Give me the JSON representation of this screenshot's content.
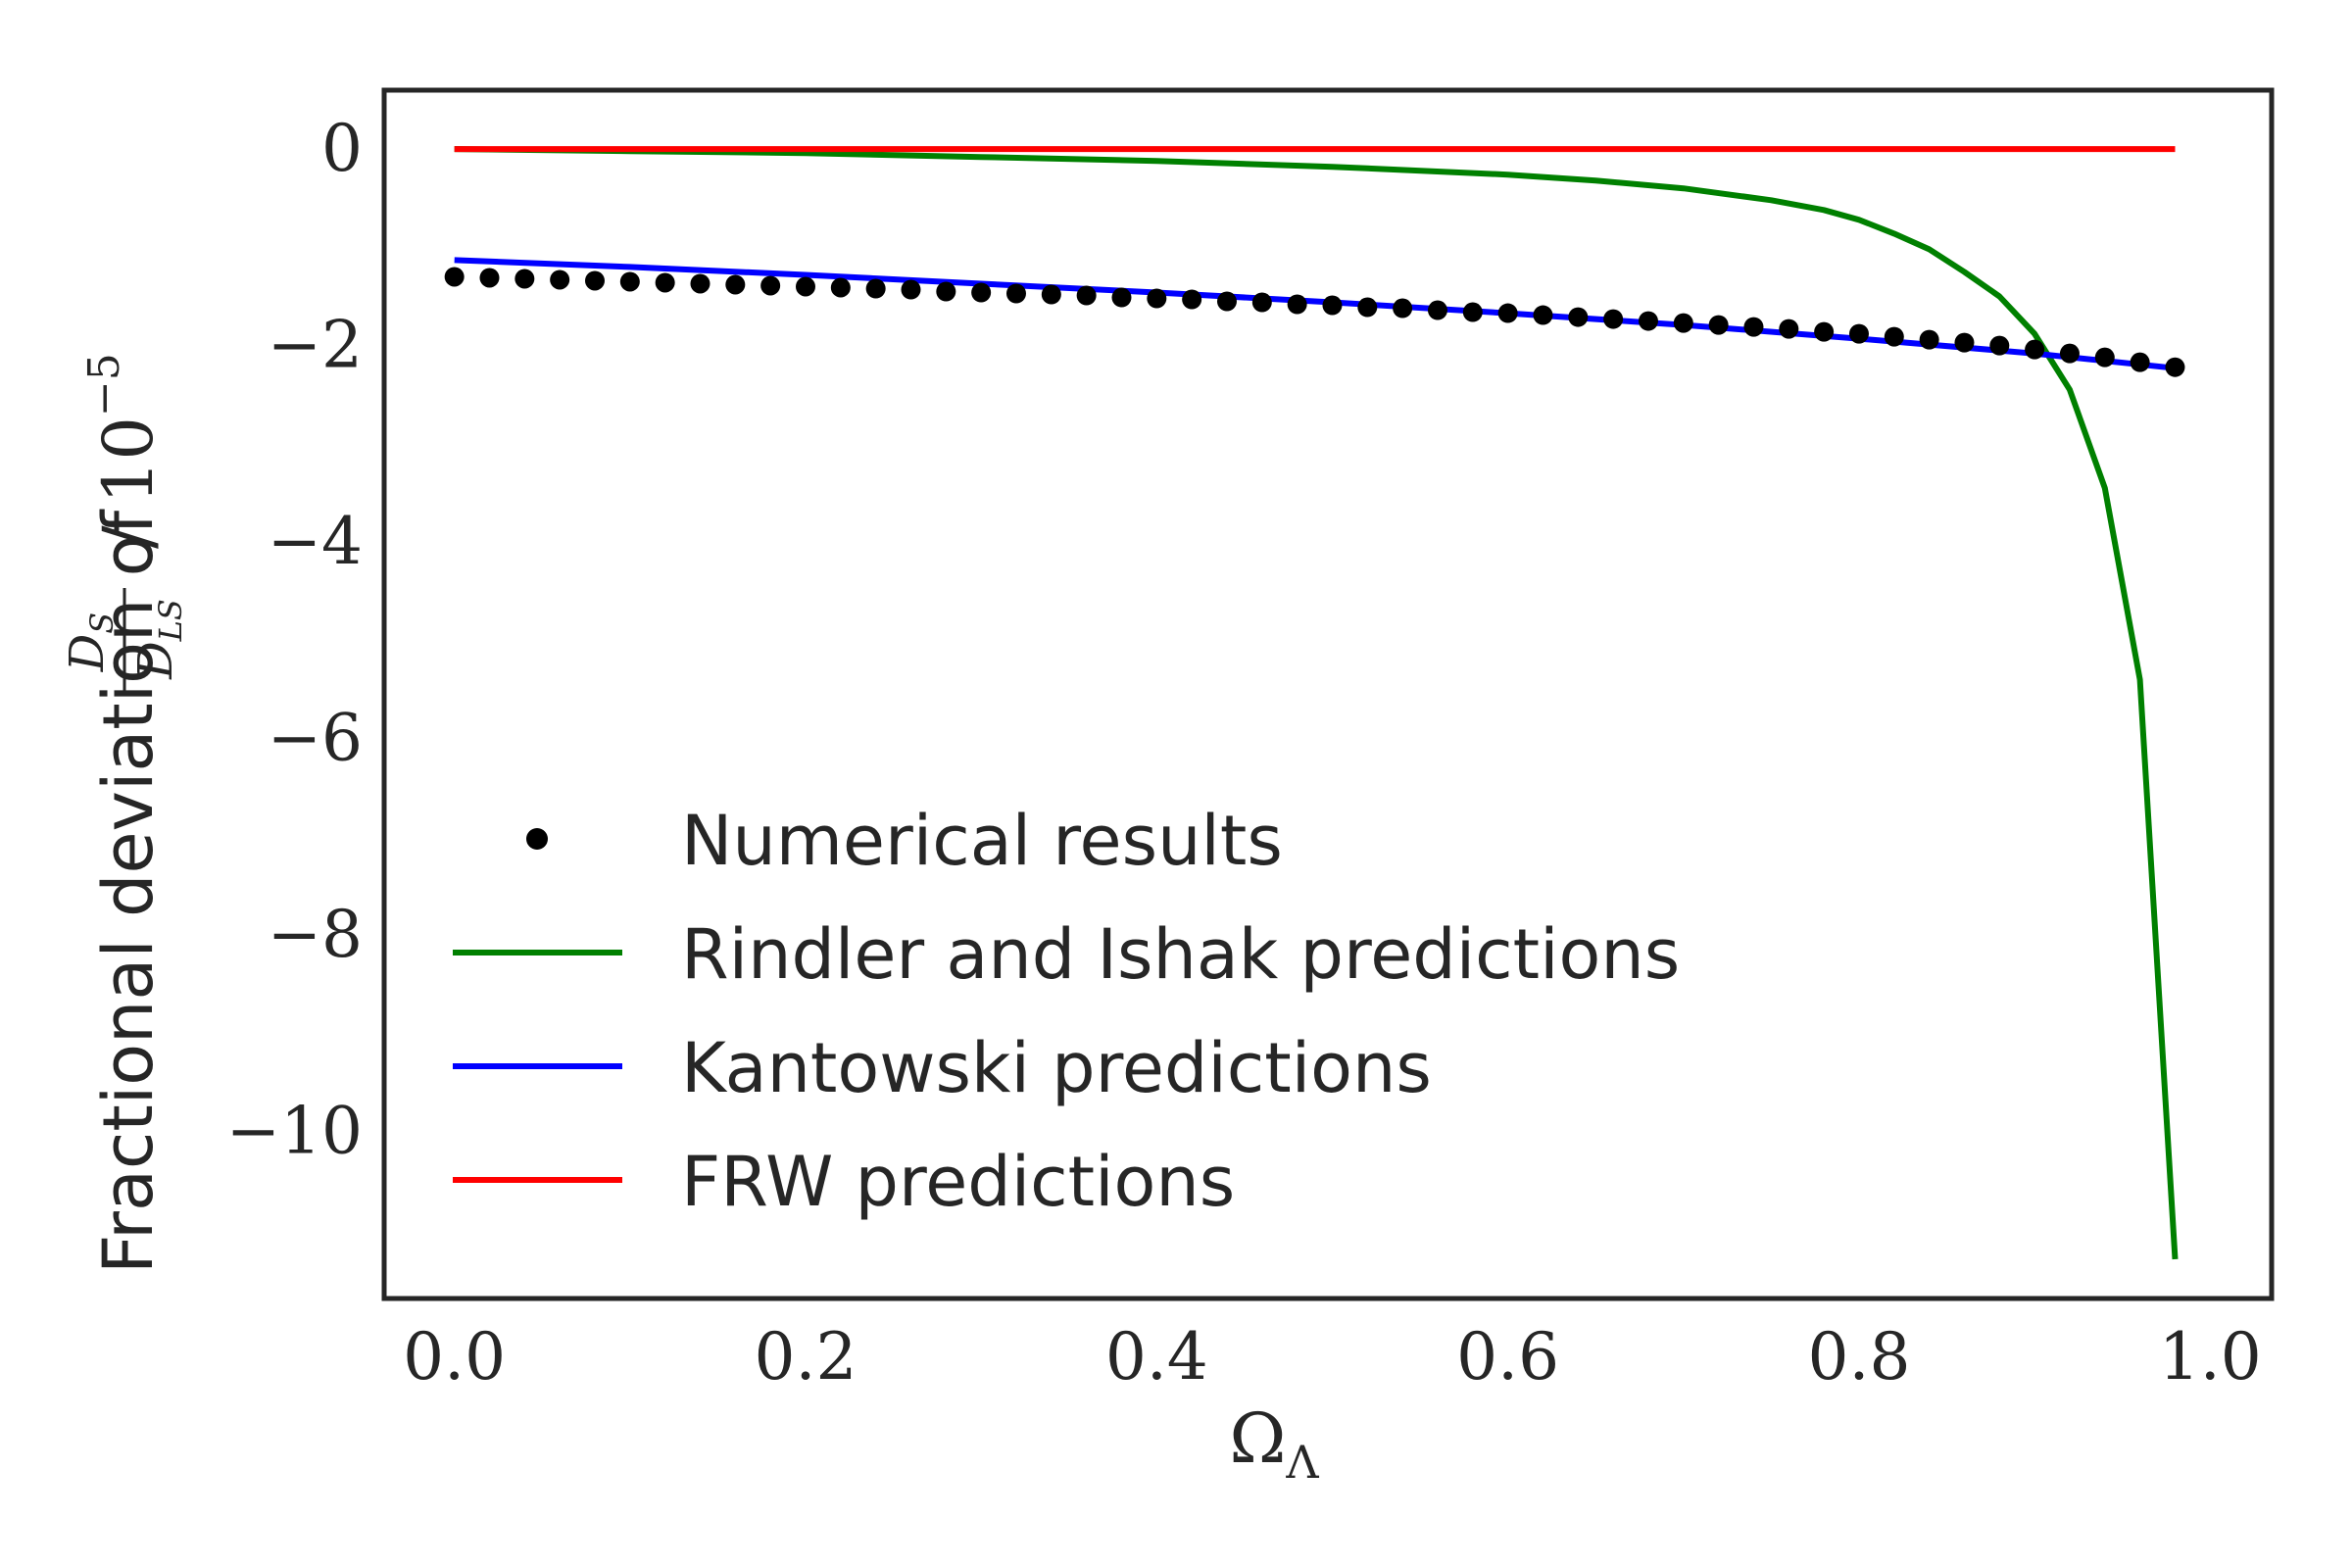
{
  "chart_data": {
    "type": "line",
    "xlabel": "Ω",
    "xlabel_sub": "Λ",
    "ylabel": {
      "prefix": "Fractional deviation of",
      "frac_num": "D",
      "frac_num_sub": "S",
      "frac_den": "D",
      "frac_den_sub": "LS",
      "suffix": "/ 10",
      "suffix_exp": "−5"
    },
    "xlim": [
      -0.04,
      1.035
    ],
    "ylim": [
      -11.7,
      0.6
    ],
    "x_ticks": [
      0.0,
      0.2,
      0.4,
      0.6,
      0.8,
      1.0
    ],
    "x_tick_labels": [
      "0.0",
      "0.2",
      "0.4",
      "0.6",
      "0.8",
      "1.0"
    ],
    "y_ticks": [
      0,
      -2,
      -4,
      -6,
      -8,
      -10
    ],
    "y_tick_labels": [
      "0",
      "−2",
      "−4",
      "−6",
      "−8",
      "−10"
    ],
    "grid": false,
    "legend_position": "lower-left",
    "colors": {
      "numerical": "#000000",
      "rindler": "#008000",
      "kantowski": "#0000ff",
      "frw": "#ff0000",
      "axes": "#262626"
    },
    "series": [
      {
        "name": "Numerical results",
        "style": "dots",
        "x": [
          0.0,
          0.02,
          0.04,
          0.06,
          0.08,
          0.1,
          0.12,
          0.14,
          0.16,
          0.18,
          0.2,
          0.22,
          0.24,
          0.26,
          0.28,
          0.3,
          0.32,
          0.34,
          0.36,
          0.38,
          0.4,
          0.42,
          0.44,
          0.46,
          0.48,
          0.5,
          0.52,
          0.54,
          0.56,
          0.58,
          0.6,
          0.62,
          0.64,
          0.66,
          0.68,
          0.7,
          0.72,
          0.74,
          0.76,
          0.78,
          0.8,
          0.82,
          0.84,
          0.86,
          0.88,
          0.9,
          0.92,
          0.94,
          0.96,
          0.98
        ],
        "y": [
          -1.3,
          -1.31,
          -1.32,
          -1.33,
          -1.34,
          -1.35,
          -1.36,
          -1.37,
          -1.38,
          -1.39,
          -1.4,
          -1.41,
          -1.42,
          -1.43,
          -1.45,
          -1.46,
          -1.47,
          -1.48,
          -1.49,
          -1.51,
          -1.52,
          -1.53,
          -1.55,
          -1.56,
          -1.58,
          -1.59,
          -1.61,
          -1.62,
          -1.64,
          -1.66,
          -1.67,
          -1.69,
          -1.71,
          -1.73,
          -1.75,
          -1.77,
          -1.79,
          -1.81,
          -1.83,
          -1.86,
          -1.88,
          -1.91,
          -1.94,
          -1.97,
          -2.0,
          -2.04,
          -2.08,
          -2.12,
          -2.17,
          -2.22
        ]
      },
      {
        "name": "Rindler and Ishak predictions",
        "style": "line",
        "x": [
          0.0,
          0.1,
          0.2,
          0.3,
          0.4,
          0.5,
          0.6,
          0.65,
          0.7,
          0.75,
          0.78,
          0.8,
          0.82,
          0.84,
          0.86,
          0.88,
          0.9,
          0.92,
          0.94,
          0.96,
          0.98
        ],
        "y": [
          0.0,
          -0.02,
          -0.04,
          -0.08,
          -0.12,
          -0.18,
          -0.26,
          -0.32,
          -0.4,
          -0.52,
          -0.62,
          -0.72,
          -0.86,
          -1.02,
          -1.25,
          -1.5,
          -1.88,
          -2.45,
          -3.45,
          -5.4,
          -11.3
        ]
      },
      {
        "name": "Kantowski predictions",
        "style": "line",
        "x": [
          0.0,
          0.1,
          0.2,
          0.3,
          0.4,
          0.5,
          0.6,
          0.7,
          0.8,
          0.9,
          0.98
        ],
        "y": [
          -1.13,
          -1.2,
          -1.28,
          -1.37,
          -1.46,
          -1.56,
          -1.67,
          -1.79,
          -1.93,
          -2.08,
          -2.23
        ]
      },
      {
        "name": "FRW predictions",
        "style": "line",
        "x": [
          0.0,
          0.98
        ],
        "y": [
          0.0,
          0.0
        ]
      }
    ]
  }
}
